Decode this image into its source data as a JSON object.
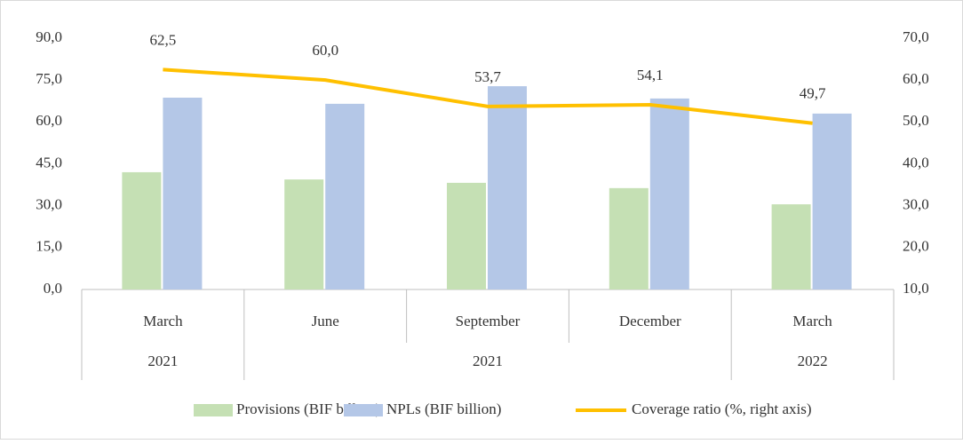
{
  "chart_data": {
    "type": "bar-line",
    "categories": [
      "March",
      "June",
      "September",
      "December",
      "March"
    ],
    "year_groups": [
      {
        "label": "2021",
        "first": 0,
        "last": 0
      },
      {
        "label": "2021",
        "first": 1,
        "last": 3
      },
      {
        "label": "2022",
        "first": 4,
        "last": 4
      }
    ],
    "series": [
      {
        "name": "Provisions (BIF billion)",
        "color": "#c5e0b4",
        "kind": "bar",
        "values": [
          42.0,
          39.4,
          38.2,
          36.3,
          30.5
        ]
      },
      {
        "name": "NPLs (BIF billion)",
        "color": "#b4c7e7",
        "kind": "bar",
        "values": [
          68.7,
          66.5,
          72.8,
          68.4,
          63.0
        ]
      },
      {
        "name": "Coverage ratio (%, right axis)",
        "color": "#ffc000",
        "kind": "line",
        "axis": "y2",
        "values": [
          62.5,
          60.0,
          53.7,
          54.1,
          49.7
        ],
        "value_labels": [
          "62,5",
          "60,0",
          "53,7",
          "54,1",
          "49,7"
        ]
      }
    ],
    "ylim": [
      0,
      90
    ],
    "yticks": [
      {
        "value": 0,
        "label": "0,0"
      },
      {
        "value": 15,
        "label": "15,0"
      },
      {
        "value": 30,
        "label": "30,0"
      },
      {
        "value": 45,
        "label": "45,0"
      },
      {
        "value": 60,
        "label": "60,0"
      },
      {
        "value": 75,
        "label": "75,0"
      },
      {
        "value": 90,
        "label": "90,0"
      }
    ],
    "y2lim": [
      10,
      70
    ],
    "y2ticks": [
      {
        "value": 10,
        "label": "10,0"
      },
      {
        "value": 20,
        "label": "20,0"
      },
      {
        "value": 30,
        "label": "30,0"
      },
      {
        "value": 40,
        "label": "40,0"
      },
      {
        "value": 50,
        "label": "50,0"
      },
      {
        "value": 60,
        "label": "60,0"
      },
      {
        "value": 70,
        "label": "70,0"
      }
    ],
    "legend": "bottom"
  }
}
